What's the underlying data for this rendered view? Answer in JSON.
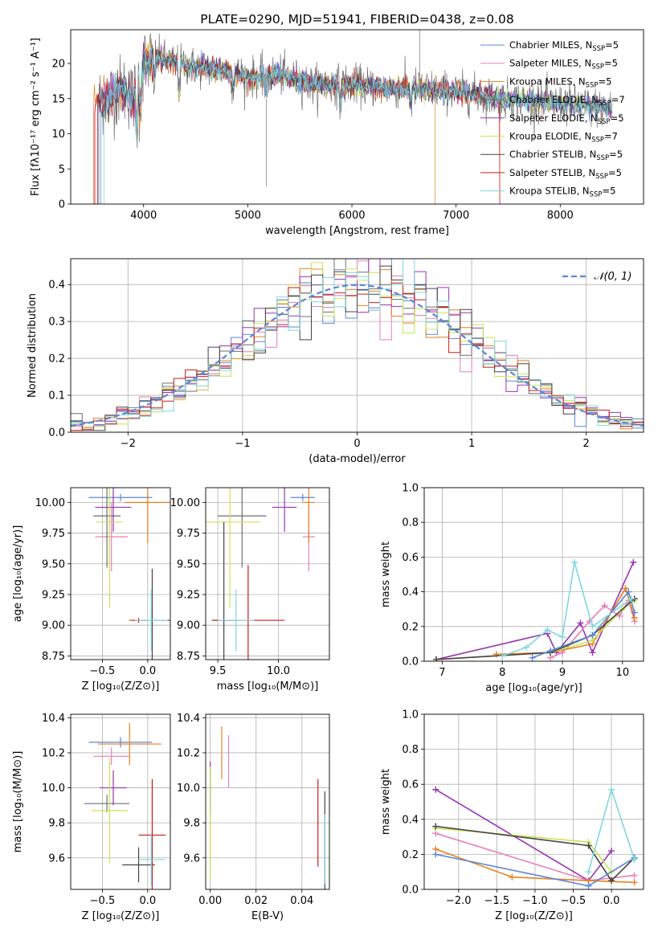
{
  "chart_data": [
    {
      "type": "line",
      "title": "PLATE=0290, MJD=51941, FIBERID=0438, z=0.08",
      "xlabel": "wavelength [Angstrom, rest frame]",
      "ylabel": "Flux [fλ10⁻¹⁷ erg cm⁻² s⁻¹ A⁻¹]",
      "xlim": [
        3300,
        8800
      ],
      "ylim": [
        0,
        24.8
      ],
      "xticks": [
        4000,
        5000,
        6000,
        7000,
        8000
      ],
      "yticks": [
        0,
        5,
        10,
        15,
        20
      ],
      "grid": false,
      "legend_placement": "top-right",
      "series": [
        {
          "name": "Chabrier MILES, N",
          "suffix": "SSP",
          "tail": "=5",
          "color": "#5b87d6"
        },
        {
          "name": "Salpeter MILES, N",
          "suffix": "SSP",
          "tail": "=5",
          "color": "#e97fb6"
        },
        {
          "name": "Kroupa MILES, N",
          "suffix": "SSP",
          "tail": "=5",
          "color": "#e8801e"
        },
        {
          "name": "Chabrier ELODIE, N",
          "suffix": "SSP",
          "tail": "=7",
          "color": "#6f6f6f"
        },
        {
          "name": "Salpeter ELODIE, N",
          "suffix": "SSP",
          "tail": "=5",
          "color": "#9b33b5"
        },
        {
          "name": "Kroupa ELODIE, N",
          "suffix": "SSP",
          "tail": "=7",
          "color": "#c6e555"
        },
        {
          "name": "Chabrier STELIB, N",
          "suffix": "SSP",
          "tail": "=5",
          "color": "#444444"
        },
        {
          "name": "Salpeter STELIB, N",
          "suffix": "SSP",
          "tail": "=5",
          "color": "#cc1a1a"
        },
        {
          "name": "Kroupa STELIB, N",
          "suffix": "SSP",
          "tail": "=5",
          "color": "#7fd7dd"
        }
      ],
      "spectrum_trend": {
        "x": [
          3500,
          3600,
          3700,
          3800,
          3900,
          4000,
          4100,
          4300,
          4500,
          4800,
          5000,
          5300,
          5600,
          6000,
          6300,
          6600,
          7000,
          7400,
          7800,
          8200,
          8500
        ],
        "y": [
          14,
          15,
          15.5,
          16.5,
          15,
          20,
          21,
          20,
          19.5,
          19,
          18,
          18.5,
          17,
          17,
          16.5,
          16.5,
          16,
          15,
          14.5,
          14,
          13.5
        ]
      }
    },
    {
      "type": "line",
      "xlabel": "(data-model)/error",
      "ylabel": "Normed distribution",
      "xlim": [
        -2.5,
        2.5
      ],
      "ylim": [
        0,
        0.47
      ],
      "xticks": [
        -2,
        -1,
        0,
        1,
        2
      ],
      "yticks": [
        0.0,
        0.1,
        0.2,
        0.3,
        0.4
      ],
      "grid": true,
      "legend_placement": "top-right",
      "reference_curve": {
        "name": "𝒩(0, 1)",
        "style": "dashed",
        "color": "#5b87d6",
        "mean": 0,
        "sigma": 1
      },
      "histogram": {
        "bins": 50,
        "bin_range": [
          -2.5,
          2.5
        ],
        "count": 9
      }
    },
    {
      "type": "scatter",
      "xlabel": "Z [log₁₀(Z/Z⊙)]",
      "ylabel": "age  [log₁₀(age/yr)]",
      "xlim": [
        -0.85,
        0.25
      ],
      "ylim": [
        8.72,
        10.12
      ],
      "xticks": [
        -0.5,
        0.0
      ],
      "yticks": [
        8.75,
        9.0,
        9.25,
        9.5,
        9.75,
        10.0
      ],
      "grid": true,
      "points": [
        {
          "x": -0.3,
          "y": 10.04,
          "xerr": 0.35,
          "yerr": 0.03,
          "color": "#5b87d6"
        },
        {
          "x": -0.4,
          "y": 9.72,
          "xerr": 0.18,
          "yerr": 0.28,
          "color": "#e97fb6"
        },
        {
          "x": 0.0,
          "y": 10.0,
          "xerr": 0.25,
          "yerr": 0.33,
          "color": "#e8801e"
        },
        {
          "x": -0.45,
          "y": 9.89,
          "xerr": 0.15,
          "yerr": 0.42,
          "color": "#6f6f6f"
        },
        {
          "x": -0.38,
          "y": 9.96,
          "xerr": 0.2,
          "yerr": 0.2,
          "color": "#9b33b5"
        },
        {
          "x": -0.42,
          "y": 9.84,
          "xerr": 0.15,
          "yerr": 0.7,
          "color": "#c6e555"
        },
        {
          "x": 0.05,
          "y": 9.04,
          "xerr": 0.2,
          "yerr": 0.42,
          "color": "#444444"
        },
        {
          "x": -0.1,
          "y": 9.04,
          "xerr": 0.1,
          "yerr": 0.02,
          "color": "#cc1a1a"
        },
        {
          "x": 0.04,
          "y": 9.04,
          "xerr": 0.18,
          "yerr": 0.25,
          "color": "#7fd7dd"
        }
      ]
    },
    {
      "type": "scatter",
      "xlabel": "mass [log₁₀(M/M⊙)]",
      "ylabel": "",
      "xlim": [
        9.4,
        10.42
      ],
      "ylim": [
        8.72,
        10.12
      ],
      "xticks": [
        9.5,
        10.0
      ],
      "yticks": [
        8.75,
        9.0,
        9.25,
        9.5,
        9.75,
        10.0
      ],
      "grid": true,
      "points": [
        {
          "x": 10.2,
          "y": 10.04,
          "xerr": 0.1,
          "yerr": 0.03,
          "color": "#5b87d6"
        },
        {
          "x": 10.25,
          "y": 9.72,
          "xerr": 0.05,
          "yerr": 0.28,
          "color": "#e97fb6"
        },
        {
          "x": 10.25,
          "y": 10.0,
          "xerr": 0.05,
          "yerr": 0.33,
          "color": "#e8801e"
        },
        {
          "x": 9.7,
          "y": 9.89,
          "xerr": 0.2,
          "yerr": 0.42,
          "color": "#6f6f6f"
        },
        {
          "x": 10.05,
          "y": 9.96,
          "xerr": 0.1,
          "yerr": 0.2,
          "color": "#9b33b5"
        },
        {
          "x": 9.6,
          "y": 9.84,
          "xerr": 0.25,
          "yerr": 0.7,
          "color": "#c6e555"
        },
        {
          "x": 9.55,
          "y": 9.04,
          "xerr": 0.1,
          "yerr": 0.8,
          "color": "#444444"
        },
        {
          "x": 9.75,
          "y": 9.04,
          "xerr": 0.3,
          "yerr": 0.45,
          "color": "#cc1a1a"
        },
        {
          "x": 9.65,
          "y": 9.04,
          "xerr": 0.15,
          "yerr": 0.25,
          "color": "#7fd7dd"
        }
      ]
    },
    {
      "type": "line",
      "xlabel": "age  [log₁₀(age/yr)]",
      "ylabel": "mass weight",
      "xlim": [
        6.7,
        10.35
      ],
      "ylim": [
        0,
        1.0
      ],
      "xticks": [
        7,
        8,
        9,
        10
      ],
      "yticks": [
        0.0,
        0.2,
        0.4,
        0.6,
        0.8,
        1.0
      ],
      "grid": true,
      "series": [
        {
          "color": "#9b33b5",
          "x": [
            6.9,
            8.75,
            8.9,
            9.3,
            9.5,
            10.18
          ],
          "y": [
            0.01,
            0.16,
            0.05,
            0.22,
            0.05,
            0.57
          ]
        },
        {
          "color": "#e97fb6",
          "x": [
            8.8,
            9.0,
            9.45,
            9.7,
            9.95,
            10.1,
            10.2
          ],
          "y": [
            0.02,
            0.05,
            0.23,
            0.32,
            0.26,
            0.35,
            0.23
          ]
        },
        {
          "color": "#e8801e",
          "x": [
            7.9,
            8.8,
            9.5,
            10.05,
            10.2
          ],
          "y": [
            0.04,
            0.05,
            0.1,
            0.42,
            0.25
          ]
        },
        {
          "color": "#c6e555",
          "x": [
            6.9,
            8.8,
            9.5,
            10.0,
            10.2
          ],
          "y": [
            0.01,
            0.05,
            0.12,
            0.3,
            0.35
          ]
        },
        {
          "color": "#444444",
          "x": [
            6.9,
            8.8,
            9.5,
            10.2
          ],
          "y": [
            0.01,
            0.05,
            0.15,
            0.36
          ]
        },
        {
          "color": "#5b87d6",
          "x": [
            8.5,
            8.8,
            9.5,
            10.1,
            10.2
          ],
          "y": [
            0.02,
            0.06,
            0.15,
            0.4,
            0.28
          ]
        },
        {
          "color": "#7fd7dd",
          "x": [
            8.0,
            8.4,
            8.75,
            9.0,
            9.2,
            9.5,
            10.15
          ],
          "y": [
            0.03,
            0.08,
            0.18,
            0.14,
            0.57,
            0.2,
            0.36
          ]
        }
      ]
    },
    {
      "type": "scatter",
      "xlabel": "Z [log₁₀(Z/Z⊙)]",
      "ylabel": "mass [log₁₀(M/M⊙)]",
      "xlim": [
        -0.85,
        0.25
      ],
      "ylim": [
        9.42,
        10.42
      ],
      "xticks": [
        -0.5,
        0.0
      ],
      "yticks": [
        9.6,
        9.8,
        10.0,
        10.2,
        10.4
      ],
      "grid": true,
      "points": [
        {
          "x": -0.3,
          "y": 10.26,
          "xerr": 0.35,
          "yerr": 0.03,
          "color": "#5b87d6"
        },
        {
          "x": -0.4,
          "y": 10.18,
          "xerr": 0.2,
          "yerr": 0.05,
          "color": "#e97fb6"
        },
        {
          "x": -0.2,
          "y": 10.25,
          "xerr": 0.35,
          "yerr": 0.12,
          "color": "#e8801e"
        },
        {
          "x": -0.45,
          "y": 9.91,
          "xerr": 0.25,
          "yerr": 0.05,
          "color": "#6f6f6f"
        },
        {
          "x": -0.38,
          "y": 10.0,
          "xerr": 0.15,
          "yerr": 0.1,
          "color": "#9b33b5"
        },
        {
          "x": -0.42,
          "y": 9.87,
          "xerr": 0.2,
          "yerr": 0.3,
          "color": "#c6e555"
        },
        {
          "x": -0.1,
          "y": 9.56,
          "xerr": 0.18,
          "yerr": 0.1,
          "color": "#444444"
        },
        {
          "x": 0.05,
          "y": 9.73,
          "xerr": 0.15,
          "yerr": 0.32,
          "color": "#cc1a1a"
        },
        {
          "x": 0.04,
          "y": 9.59,
          "xerr": 0.15,
          "yerr": 0.15,
          "color": "#7fd7dd"
        }
      ]
    },
    {
      "type": "scatter",
      "xlabel": "E(B-V)",
      "ylabel": "",
      "xlim": [
        -0.002,
        0.052
      ],
      "ylim": [
        9.42,
        10.42
      ],
      "xticks": [
        0.0,
        0.02,
        0.04
      ],
      "yticks": [
        9.6,
        9.8,
        10.0,
        10.2,
        10.4
      ],
      "grid": true,
      "points": [
        {
          "x": 0.0,
          "y": 10.0,
          "yerr": 0.15,
          "color": "#9b33b5"
        },
        {
          "x": 0.0,
          "y": 9.8,
          "yerr": 0.32,
          "color": "#c6e555"
        },
        {
          "x": 0.005,
          "y": 10.2,
          "yerr": 0.15,
          "color": "#e8801e"
        },
        {
          "x": 0.008,
          "y": 10.15,
          "yerr": 0.15,
          "color": "#e97fb6"
        },
        {
          "x": 0.047,
          "y": 9.8,
          "yerr": 0.25,
          "color": "#cc1a1a"
        },
        {
          "x": 0.05,
          "y": 9.7,
          "yerr": 0.28,
          "color": "#444444"
        },
        {
          "x": 0.05,
          "y": 9.65,
          "yerr": 0.2,
          "color": "#7fd7dd"
        }
      ]
    },
    {
      "type": "line",
      "xlabel": "Z [log₁₀(Z/Z⊙)]",
      "ylabel": "mass weight",
      "xlim": [
        -2.45,
        0.42
      ],
      "ylim": [
        0,
        1.0
      ],
      "xticks": [
        -2.0,
        -1.5,
        -1.0,
        -0.5,
        0.0
      ],
      "yticks": [
        0.0,
        0.2,
        0.4,
        0.6,
        0.8,
        1.0
      ],
      "grid": true,
      "series": [
        {
          "color": "#9b33b5",
          "x": [
            -2.3,
            -0.3,
            0.0
          ],
          "y": [
            0.57,
            0.05,
            0.22
          ]
        },
        {
          "color": "#e97fb6",
          "x": [
            -2.3,
            -0.3,
            0.3
          ],
          "y": [
            0.32,
            0.05,
            0.08
          ]
        },
        {
          "color": "#e8801e",
          "x": [
            -2.3,
            -1.3,
            -0.3,
            0.3
          ],
          "y": [
            0.23,
            0.07,
            0.05,
            0.04
          ]
        },
        {
          "color": "#c6e555",
          "x": [
            -2.3,
            -0.3,
            0.0,
            0.3
          ],
          "y": [
            0.35,
            0.27,
            0.1,
            0.18
          ]
        },
        {
          "color": "#444444",
          "x": [
            -2.3,
            -0.3,
            0.0,
            0.3
          ],
          "y": [
            0.36,
            0.25,
            0.05,
            0.18
          ]
        },
        {
          "color": "#5b87d6",
          "x": [
            -2.3,
            -0.3,
            0.3
          ],
          "y": [
            0.2,
            0.02,
            0.18
          ]
        },
        {
          "color": "#7fd7dd",
          "x": [
            -0.3,
            0.0,
            0.3
          ],
          "y": [
            0.1,
            0.57,
            0.17
          ]
        }
      ]
    }
  ]
}
